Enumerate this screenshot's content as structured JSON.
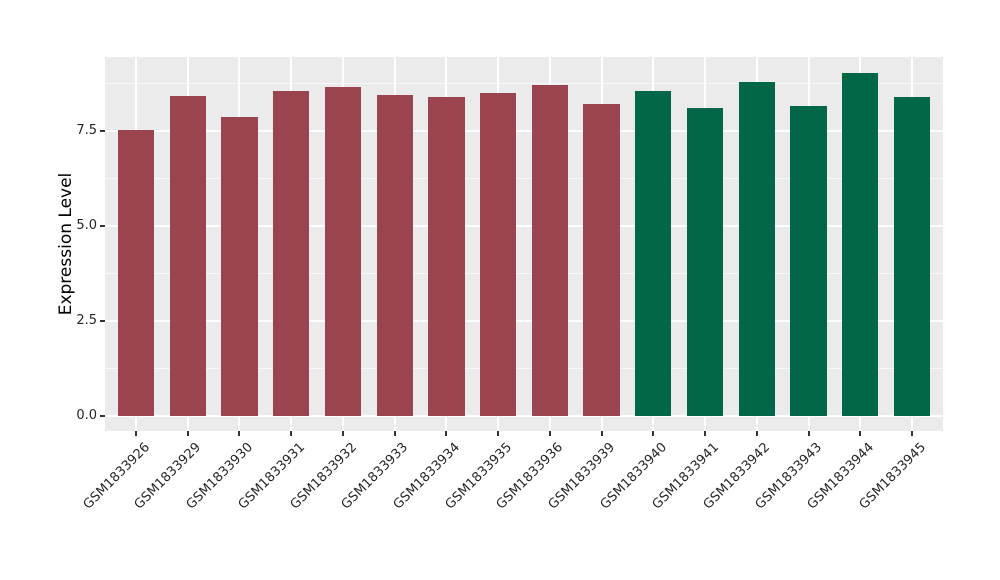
{
  "chart_data": {
    "type": "bar",
    "title": "",
    "xlabel": "",
    "ylabel": "Expression Level",
    "categories": [
      "GSM1833926",
      "GSM1833929",
      "GSM1833930",
      "GSM1833931",
      "GSM1833932",
      "GSM1833933",
      "GSM1833934",
      "GSM1833935",
      "GSM1833936",
      "GSM1833939",
      "GSM1833940",
      "GSM1833941",
      "GSM1833942",
      "GSM1833943",
      "GSM1833944",
      "GSM1833945"
    ],
    "values": [
      7.53,
      8.42,
      7.88,
      8.55,
      8.65,
      8.44,
      8.4,
      8.51,
      8.7,
      8.22,
      8.55,
      8.1,
      8.8,
      8.16,
      9.02,
      8.4
    ],
    "colors": [
      "#9A4450",
      "#9A4450",
      "#9A4450",
      "#9A4450",
      "#9A4450",
      "#9A4450",
      "#9A4450",
      "#9A4450",
      "#9A4450",
      "#9A4450",
      "#026649",
      "#026649",
      "#026649",
      "#026649",
      "#026649",
      "#026649"
    ],
    "group_colors": {
      "group_1": "#9A4450",
      "group_2": "#026649"
    },
    "yticks": [
      0,
      2.5,
      5,
      7.5
    ],
    "ytick_labels": [
      "0.0",
      "2.5",
      "5.0",
      "7.5"
    ],
    "y_minor_ticks": [
      1.25,
      3.75,
      6.25,
      8.75
    ],
    "ylim": [
      -0.4,
      9.45
    ],
    "grid": true,
    "legend": "none",
    "panel_bg": "#EBEBEB",
    "grid_color": "#FFFFFF"
  }
}
